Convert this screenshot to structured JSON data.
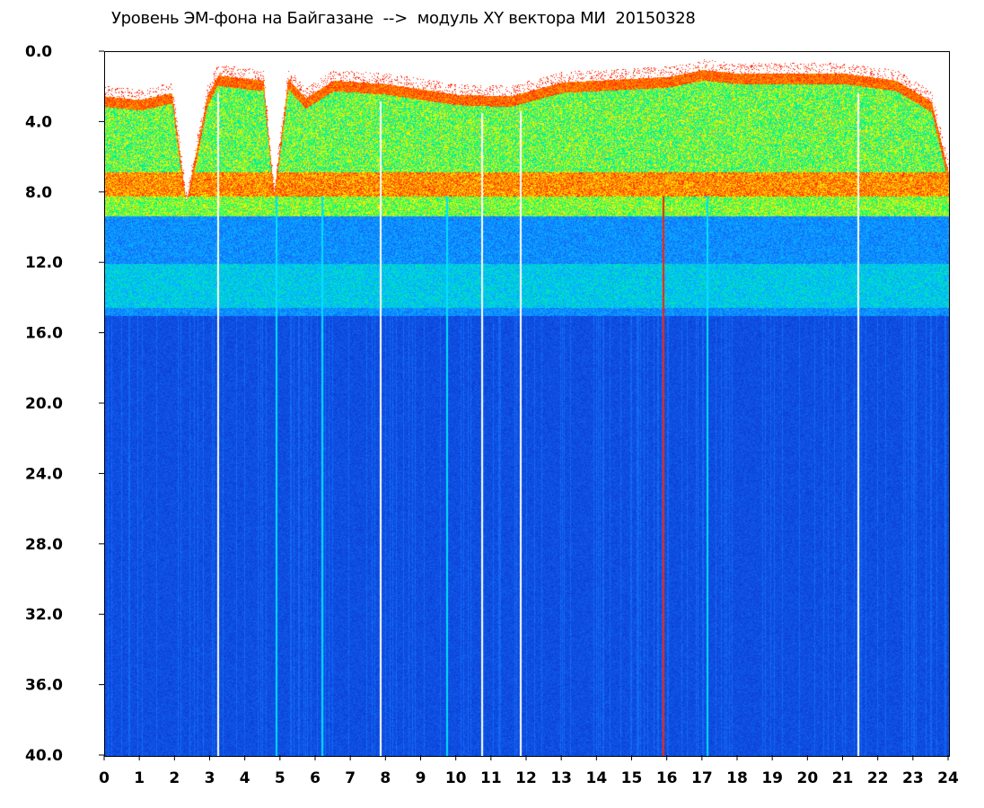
{
  "chart_data": {
    "type": "heatmap",
    "title": "Уровень ЭМ-фона на Байгазане  -->  модуль XY вектора МИ  20150328",
    "x_ticks": [
      "0",
      "1",
      "2",
      "3",
      "4",
      "5",
      "6",
      "7",
      "8",
      "9",
      "10",
      "11",
      "12",
      "13",
      "14",
      "15",
      "16",
      "17",
      "18",
      "19",
      "20",
      "21",
      "22",
      "23",
      "24"
    ],
    "y_ticks": [
      "0.0",
      "4.0",
      "8.0",
      "12.0",
      "16.0",
      "20.0",
      "24.0",
      "28.0",
      "32.0",
      "36.0",
      "40.0"
    ],
    "xlim": [
      0,
      24
    ],
    "ylim": [
      0,
      40
    ],
    "y_inverted": true,
    "grid": false,
    "colors": {
      "background_low": "#0a2dc8",
      "mid_low": "#00c8ff",
      "mid": "#00ff66",
      "mid_high": "#ffff00",
      "high": "#ff1a00"
    },
    "band_profile_by_hour": [
      {
        "x": 0.0,
        "top": 2.5
      },
      {
        "x": 1.0,
        "top": 2.7
      },
      {
        "x": 1.9,
        "top": 2.3
      },
      {
        "x": 2.3,
        "top": 8.5
      },
      {
        "x": 2.9,
        "top": 2.5
      },
      {
        "x": 3.2,
        "top": 1.3
      },
      {
        "x": 4.5,
        "top": 1.6
      },
      {
        "x": 4.8,
        "top": 8.0
      },
      {
        "x": 5.2,
        "top": 1.5
      },
      {
        "x": 5.7,
        "top": 2.6
      },
      {
        "x": 6.5,
        "top": 1.6
      },
      {
        "x": 8.0,
        "top": 1.8
      },
      {
        "x": 10.0,
        "top": 2.4
      },
      {
        "x": 11.5,
        "top": 2.5
      },
      {
        "x": 13.0,
        "top": 1.7
      },
      {
        "x": 15.0,
        "top": 1.5
      },
      {
        "x": 16.0,
        "top": 1.4
      },
      {
        "x": 17.0,
        "top": 1.0
      },
      {
        "x": 18.0,
        "top": 1.2
      },
      {
        "x": 21.0,
        "top": 1.2
      },
      {
        "x": 22.5,
        "top": 1.6
      },
      {
        "x": 23.5,
        "top": 2.8
      },
      {
        "x": 24.0,
        "top": 7.0
      }
    ],
    "vertical_lines": [
      {
        "x": 3.2,
        "color": "#ffffff"
      },
      {
        "x": 7.8,
        "color": "#ffffff"
      },
      {
        "x": 10.7,
        "color": "#ffffff"
      },
      {
        "x": 11.8,
        "color": "#ffffff"
      },
      {
        "x": 21.4,
        "color": "#ffffff"
      },
      {
        "x": 4.85,
        "color": "#00e0ff"
      },
      {
        "x": 6.15,
        "color": "#00e0ff"
      },
      {
        "x": 9.7,
        "color": "#00e0ff"
      },
      {
        "x": 17.1,
        "color": "#00e0ff"
      },
      {
        "x": 15.85,
        "color": "#ff2200"
      }
    ]
  }
}
